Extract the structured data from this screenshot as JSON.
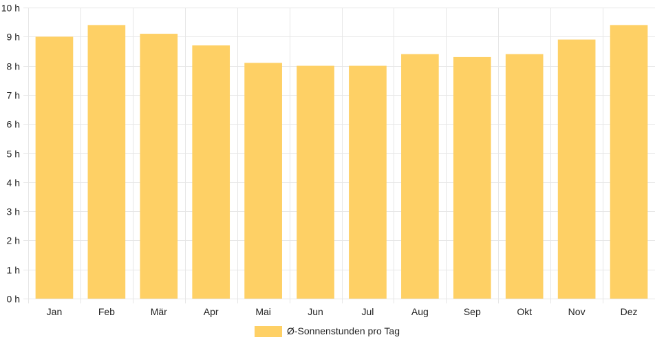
{
  "chart_data": {
    "type": "bar",
    "categories": [
      "Jan",
      "Feb",
      "Mär",
      "Apr",
      "Mai",
      "Jun",
      "Jul",
      "Aug",
      "Sep",
      "Okt",
      "Nov",
      "Dez"
    ],
    "series": [
      {
        "name": "Ø-Sonnenstunden pro Tag",
        "values": [
          9.0,
          9.4,
          9.1,
          8.7,
          8.1,
          8.0,
          8.0,
          8.4,
          8.3,
          8.4,
          8.9,
          9.4
        ]
      }
    ],
    "ylim": [
      0,
      10
    ],
    "yticks": [
      "0 h",
      "1 h",
      "2 h",
      "3 h",
      "4 h",
      "5 h",
      "6 h",
      "7 h",
      "8 h",
      "9 h",
      "10 h"
    ],
    "xlabel": "",
    "ylabel": "",
    "grid": true,
    "legend_position": "bottom",
    "bar_color": "#FED065",
    "grid_color": "#e6e6e6"
  }
}
